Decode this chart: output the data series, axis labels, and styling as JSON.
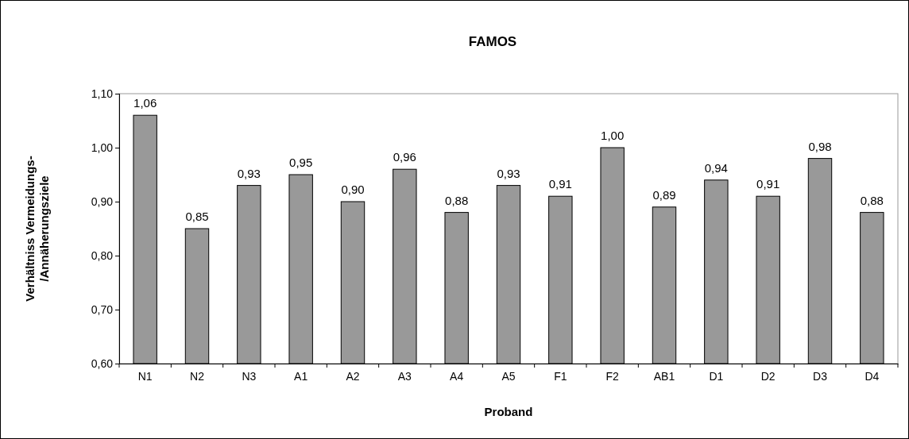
{
  "chart_data": {
    "type": "bar",
    "title": "FAMOS",
    "xlabel": "Proband",
    "ylabel": "Verhältniss Vermeidungs-\n/Annäherungsziele",
    "categories": [
      "N1",
      "N2",
      "N3",
      "A1",
      "A2",
      "A3",
      "A4",
      "A5",
      "F1",
      "F2",
      "AB1",
      "D1",
      "D2",
      "D3",
      "D4"
    ],
    "values": [
      1.06,
      0.85,
      0.93,
      0.95,
      0.9,
      0.96,
      0.88,
      0.93,
      0.91,
      1.0,
      0.89,
      0.94,
      0.91,
      0.98,
      0.88
    ],
    "value_labels": [
      "1,06",
      "0,85",
      "0,93",
      "0,95",
      "0,90",
      "0,96",
      "0,88",
      "0,93",
      "0,91",
      "1,00",
      "0,89",
      "0,94",
      "0,91",
      "0,98",
      "0,88"
    ],
    "color": "#999999",
    "ylim": [
      0.6,
      1.1
    ],
    "yticks": [
      {
        "value": 0.6,
        "label": "0,60"
      },
      {
        "value": 0.7,
        "label": "0,70"
      },
      {
        "value": 0.8,
        "label": "0,80"
      },
      {
        "value": 0.9,
        "label": "0,90"
      },
      {
        "value": 1.0,
        "label": "1,00"
      },
      {
        "value": 1.1,
        "label": "1,10"
      }
    ],
    "grid": false
  }
}
